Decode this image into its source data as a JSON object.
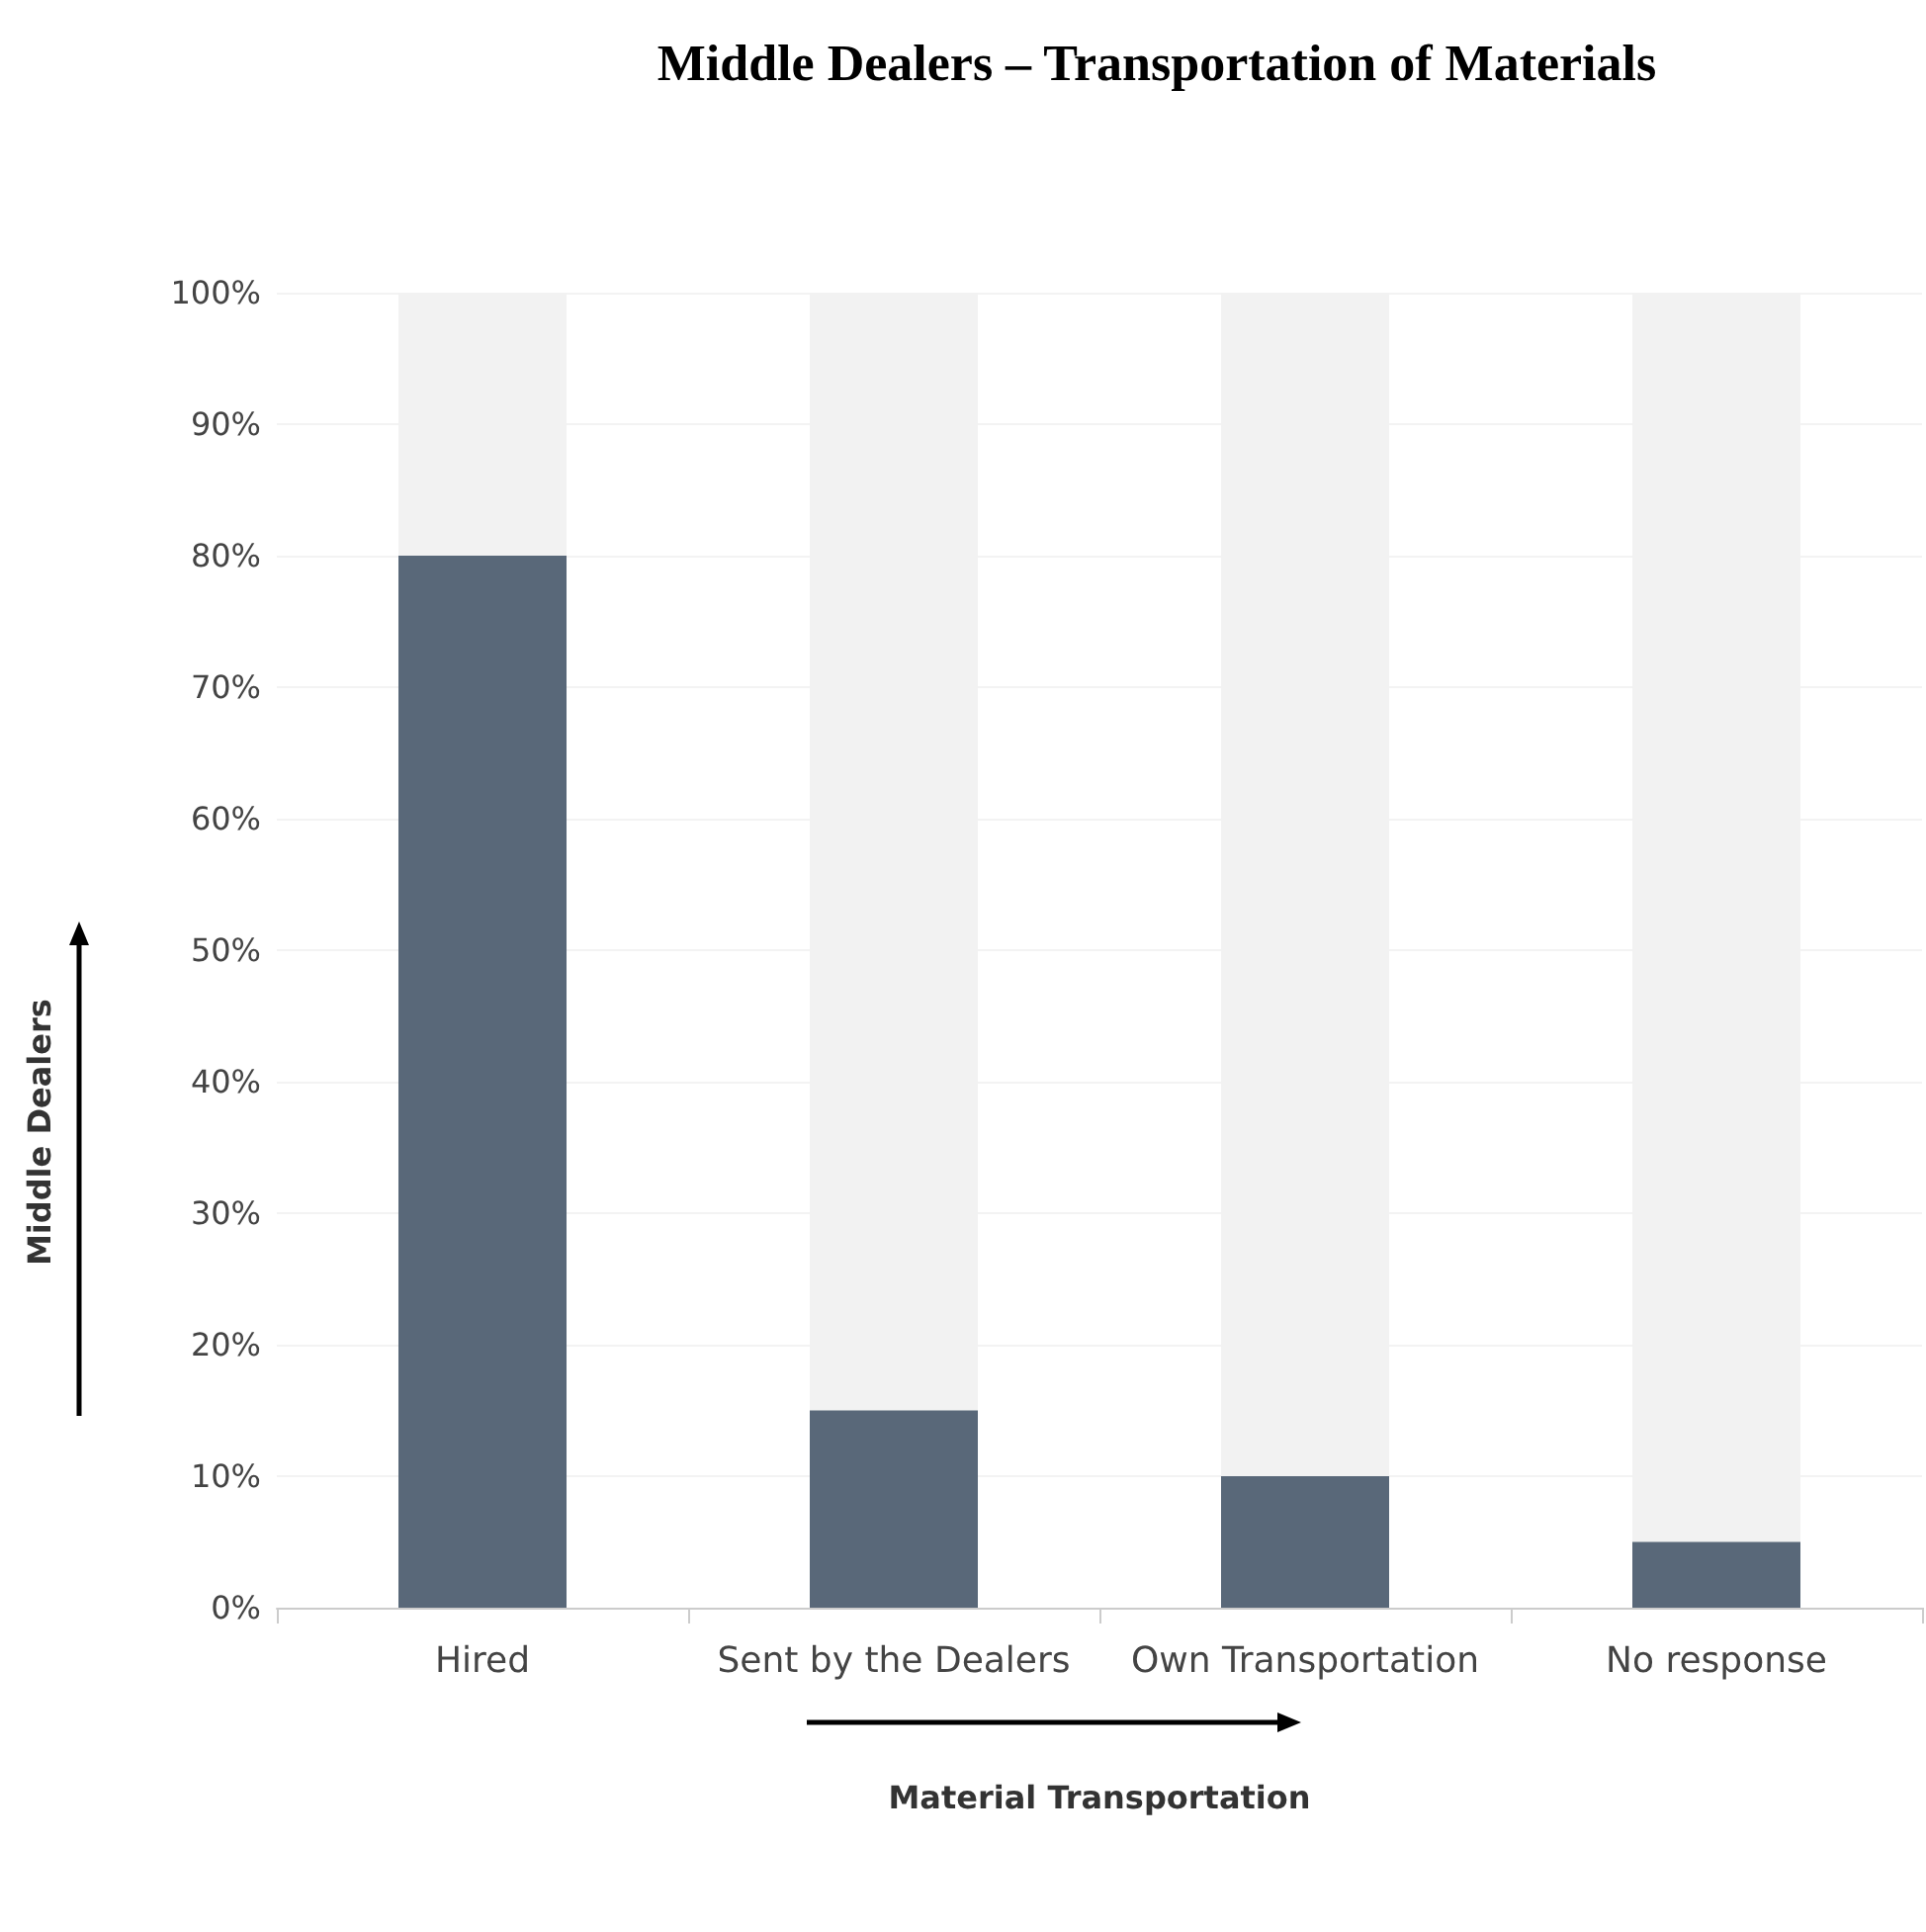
{
  "chart_data": {
    "type": "bar",
    "title": "Middle Dealers – Transportation of Materials",
    "xlabel": "Material Transportation",
    "ylabel": "Middle Dealers",
    "categories": [
      "Hired",
      "Sent by the Dealers",
      "Own Transportation",
      "No response"
    ],
    "values": [
      80,
      15,
      10,
      5
    ],
    "color": "#596879",
    "ylim": [
      0,
      100
    ],
    "yticks": [
      {
        "value": 0,
        "label": "0%"
      },
      {
        "value": 10,
        "label": "10%"
      },
      {
        "value": 20,
        "label": "20%"
      },
      {
        "value": 30,
        "label": "30%"
      },
      {
        "value": 40,
        "label": "40%"
      },
      {
        "value": 50,
        "label": "50%"
      },
      {
        "value": 60,
        "label": "60%"
      },
      {
        "value": 70,
        "label": "70%"
      },
      {
        "value": 80,
        "label": "80%"
      },
      {
        "value": 90,
        "label": "90%"
      },
      {
        "value": 100,
        "label": "100%"
      }
    ],
    "grid": "y"
  }
}
